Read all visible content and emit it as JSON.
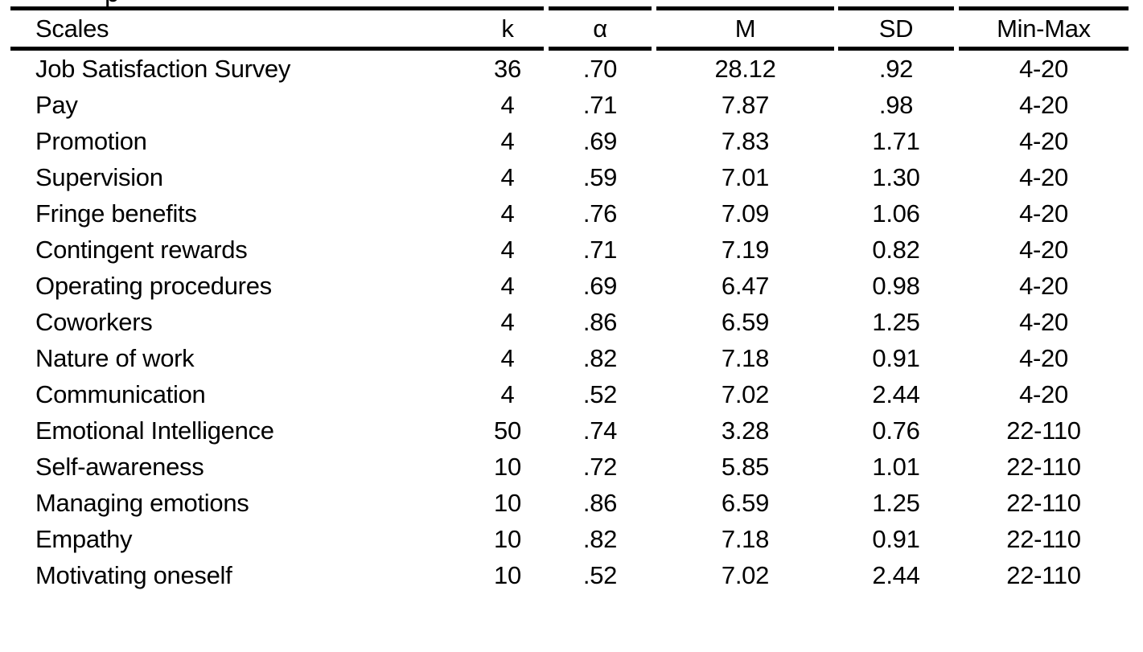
{
  "page": {
    "background_color": "#ffffff",
    "text_color": "#000000",
    "rule_color": "#000000",
    "clipped_caption_descender": "p"
  },
  "table": {
    "headers": {
      "scale": "Scales",
      "k": "k",
      "alpha": "α",
      "m": "M",
      "sd": "SD",
      "min_max": "Min-Max"
    },
    "rows": [
      {
        "scale": "Job Satisfaction Survey",
        "k": "36",
        "alpha": ".70",
        "m": "28.12",
        "sd": ".92",
        "min_max": "4-20"
      },
      {
        "scale": "Pay",
        "k": "4",
        "alpha": ".71",
        "m": "7.87",
        "sd": ".98",
        "min_max": "4-20"
      },
      {
        "scale": "Promotion",
        "k": "4",
        "alpha": ".69",
        "m": "7.83",
        "sd": "1.71",
        "min_max": "4-20"
      },
      {
        "scale": "Supervision",
        "k": "4",
        "alpha": ".59",
        "m": "7.01",
        "sd": "1.30",
        "min_max": "4-20"
      },
      {
        "scale": "Fringe benefits",
        "k": "4",
        "alpha": ".76",
        "m": "7.09",
        "sd": "1.06",
        "min_max": "4-20"
      },
      {
        "scale": "Contingent rewards",
        "k": "4",
        "alpha": ".71",
        "m": "7.19",
        "sd": "0.82",
        "min_max": "4-20"
      },
      {
        "scale": "Operating procedures",
        "k": "4",
        "alpha": ".69",
        "m": "6.47",
        "sd": "0.98",
        "min_max": "4-20"
      },
      {
        "scale": "Coworkers",
        "k": "4",
        "alpha": ".86",
        "m": "6.59",
        "sd": "1.25",
        "min_max": "4-20"
      },
      {
        "scale": "Nature of work",
        "k": "4",
        "alpha": ".82",
        "m": "7.18",
        "sd": "0.91",
        "min_max": "4-20"
      },
      {
        "scale": "Communication",
        "k": "4",
        "alpha": ".52",
        "m": "7.02",
        "sd": "2.44",
        "min_max": "4-20"
      },
      {
        "scale": "Emotional Intelligence",
        "k": "50",
        "alpha": ".74",
        "m": "3.28",
        "sd": "0.76",
        "min_max": "22-110"
      },
      {
        "scale": "Self-awareness",
        "k": "10",
        "alpha": ".72",
        "m": "5.85",
        "sd": "1.01",
        "min_max": "22-110"
      },
      {
        "scale": "Managing emotions",
        "k": "10",
        "alpha": ".86",
        "m": "6.59",
        "sd": "1.25",
        "min_max": "22-110"
      },
      {
        "scale": "Empathy",
        "k": "10",
        "alpha": ".82",
        "m": "7.18",
        "sd": "0.91",
        "min_max": "22-110"
      },
      {
        "scale": "Motivating oneself",
        "k": "10",
        "alpha": ".52",
        "m": "7.02",
        "sd": "2.44",
        "min_max": "22-110"
      }
    ]
  }
}
